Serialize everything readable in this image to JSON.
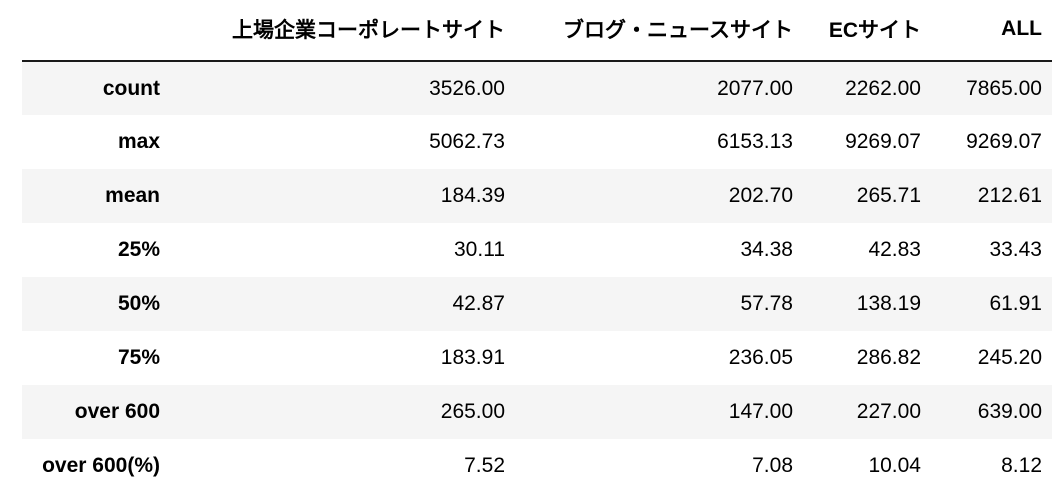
{
  "table": {
    "index_header": "",
    "columns": [
      "上場企業コーポレートサイト",
      "ブログ・ニュースサイト",
      "ECサイト",
      "ALL"
    ],
    "rows": [
      {
        "label": "count",
        "values": [
          "3526.00",
          "2077.00",
          "2262.00",
          "7865.00"
        ]
      },
      {
        "label": "max",
        "values": [
          "5062.73",
          "6153.13",
          "9269.07",
          "9269.07"
        ]
      },
      {
        "label": "mean",
        "values": [
          "184.39",
          "202.70",
          "265.71",
          "212.61"
        ]
      },
      {
        "label": "25%",
        "values": [
          "30.11",
          "34.38",
          "42.83",
          "33.43"
        ]
      },
      {
        "label": "50%",
        "values": [
          "42.87",
          "57.78",
          "138.19",
          "61.91"
        ]
      },
      {
        "label": "75%",
        "values": [
          "183.91",
          "236.05",
          "286.82",
          "245.20"
        ]
      },
      {
        "label": "over 600",
        "values": [
          "265.00",
          "147.00",
          "227.00",
          "639.00"
        ]
      },
      {
        "label": "over 600(%)",
        "values": [
          "7.52",
          "7.08",
          "10.04",
          "8.12"
        ]
      }
    ]
  }
}
